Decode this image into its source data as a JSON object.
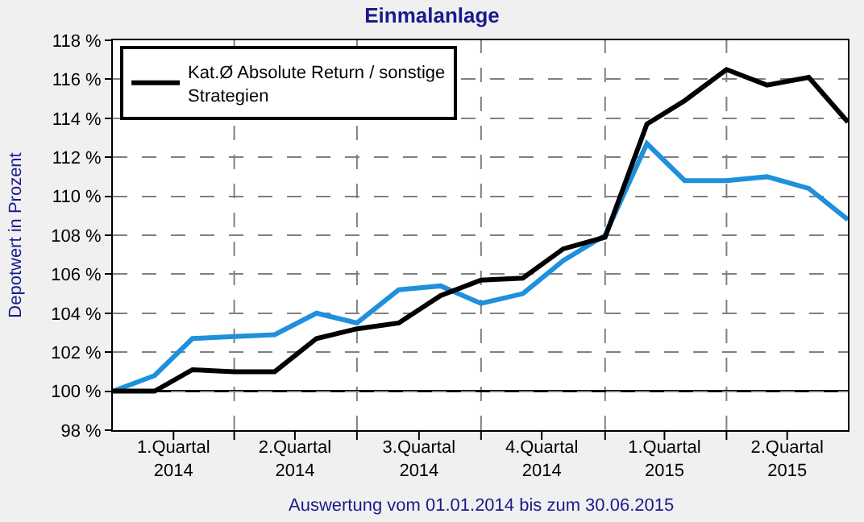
{
  "chart_data": {
    "type": "line",
    "title": "Einmalanlage",
    "ylabel": "Depotwert in Prozent",
    "x": [
      "2014-01-01",
      "2014-02-01",
      "2014-03-01",
      "2014-04-01",
      "2014-05-01",
      "2014-06-01",
      "2014-07-01",
      "2014-08-01",
      "2014-09-01",
      "2014-10-01",
      "2014-11-01",
      "2014-12-01",
      "2015-01-01",
      "2015-02-01",
      "2015-03-01",
      "2015-04-01",
      "2015-05-01",
      "2015-06-01",
      "2015-06-30"
    ],
    "xlim": [
      "2014-01-01",
      "2015-06-30"
    ],
    "xticks": [
      {
        "value": "2014-02-15",
        "label": "1.Quartal\n2014"
      },
      {
        "value": "2014-04-01",
        "label": null
      },
      {
        "value": "2014-05-16",
        "label": "2.Quartal\n2014"
      },
      {
        "value": "2014-07-01",
        "label": null
      },
      {
        "value": "2014-08-16",
        "label": "3.Quartal\n2014"
      },
      {
        "value": "2014-10-01",
        "label": null
      },
      {
        "value": "2014-11-15",
        "label": "4.Quartal\n2014"
      },
      {
        "value": "2015-01-01",
        "label": null
      },
      {
        "value": "2015-02-14",
        "label": "1.Quartal\n2015"
      },
      {
        "value": "2015-04-01",
        "label": null
      },
      {
        "value": "2015-05-16",
        "label": "2.Quartal\n2015"
      }
    ],
    "ylim": [
      98,
      118
    ],
    "yticks": [
      {
        "value": 98,
        "label": "98 %"
      },
      {
        "value": 100,
        "label": "100 %"
      },
      {
        "value": 102,
        "label": "102 %"
      },
      {
        "value": 104,
        "label": "104 %"
      },
      {
        "value": 106,
        "label": "106 %"
      },
      {
        "value": 108,
        "label": "108 %"
      },
      {
        "value": 110,
        "label": "110 %"
      },
      {
        "value": 112,
        "label": "112 %"
      },
      {
        "value": 114,
        "label": "114 %"
      },
      {
        "value": 116,
        "label": "116 %"
      },
      {
        "value": 118,
        "label": "118 %"
      }
    ],
    "series": [
      {
        "color": "#1e90dc",
        "values": [
          100,
          100.8,
          102.7,
          102.8,
          102.9,
          104.0,
          103.5,
          105.2,
          105.4,
          104.5,
          105.0,
          106.7,
          108.0,
          112.7,
          110.8,
          110.8,
          111.0,
          110.4,
          108.8
        ]
      },
      {
        "name": "Kat.Ø Absolute Return / sonstige Strategien",
        "color": "#000000",
        "values": [
          100,
          100.0,
          101.1,
          101.0,
          101.0,
          102.7,
          103.2,
          103.5,
          104.9,
          105.7,
          105.8,
          107.3,
          107.9,
          113.7,
          114.9,
          116.5,
          115.7,
          116.1,
          113.8
        ]
      }
    ],
    "ref_lines": [
      {
        "axis": "y",
        "value": 100,
        "color": "#000000",
        "line_style": "solid"
      }
    ],
    "grid": true,
    "legend": "top left",
    "marker": "none",
    "line_style": "solid",
    "annotations": [
      "Auswertung vom 01.01.2014 bis zum 30.06.2015"
    ]
  }
}
